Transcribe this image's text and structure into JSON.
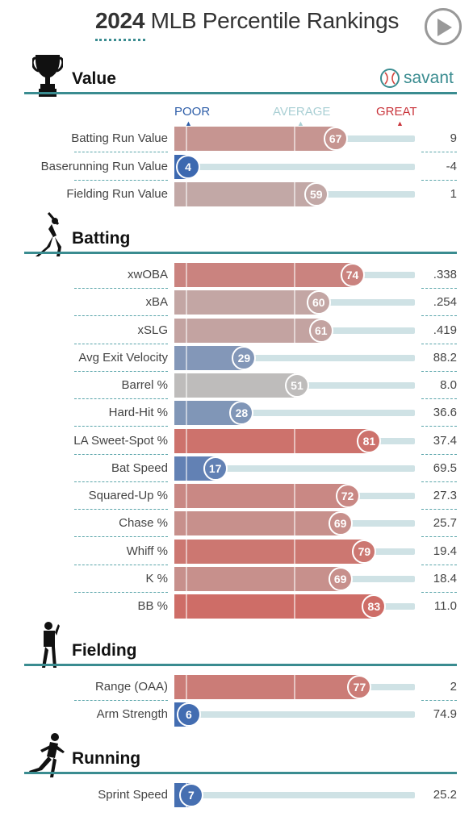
{
  "header": {
    "year": "2024",
    "title": "MLB Percentile Rankings"
  },
  "icons": {
    "play": "play-icon",
    "value": "trophy-icon",
    "batting": "batter-icon",
    "fielding": "fielder-icon",
    "running": "runner-icon",
    "savant": "baseball-icon"
  },
  "colors": {
    "teal": "#3a8c90",
    "poor": "#2e5ea8",
    "great": "#c9343b",
    "average": "#a9cfd4"
  },
  "savant": {
    "label": "savant"
  },
  "scale": {
    "poor": "POOR",
    "average": "AVERAGE",
    "great": "GREAT"
  },
  "sections": [
    {
      "title": "Value",
      "rows": [
        {
          "label": "Batting Run Value",
          "percentile": 67,
          "value": "9"
        },
        {
          "label": "Baserunning Run Value",
          "percentile": 4,
          "value": "-4"
        },
        {
          "label": "Fielding Run Value",
          "percentile": 59,
          "value": "1"
        }
      ]
    },
    {
      "title": "Batting",
      "rows": [
        {
          "label": "xwOBA",
          "percentile": 74,
          "value": ".338"
        },
        {
          "label": "xBA",
          "percentile": 60,
          "value": ".254"
        },
        {
          "label": "xSLG",
          "percentile": 61,
          "value": ".419"
        },
        {
          "label": "Avg Exit Velocity",
          "percentile": 29,
          "value": "88.2"
        },
        {
          "label": "Barrel %",
          "percentile": 51,
          "value": "8.0"
        },
        {
          "label": "Hard-Hit %",
          "percentile": 28,
          "value": "36.6"
        },
        {
          "label": "LA Sweet-Spot %",
          "percentile": 81,
          "value": "37.4"
        },
        {
          "label": "Bat Speed",
          "percentile": 17,
          "value": "69.5"
        },
        {
          "label": "Squared-Up %",
          "percentile": 72,
          "value": "27.3"
        },
        {
          "label": "Chase %",
          "percentile": 69,
          "value": "25.7"
        },
        {
          "label": "Whiff %",
          "percentile": 79,
          "value": "19.4"
        },
        {
          "label": "K %",
          "percentile": 69,
          "value": "18.4"
        },
        {
          "label": "BB %",
          "percentile": 83,
          "value": "11.0"
        }
      ]
    },
    {
      "title": "Fielding",
      "rows": [
        {
          "label": "Range (OAA)",
          "percentile": 77,
          "value": "2"
        },
        {
          "label": "Arm Strength",
          "percentile": 6,
          "value": "74.9"
        }
      ]
    },
    {
      "title": "Running",
      "rows": [
        {
          "label": "Sprint Speed",
          "percentile": 7,
          "value": "25.2"
        }
      ]
    }
  ]
}
